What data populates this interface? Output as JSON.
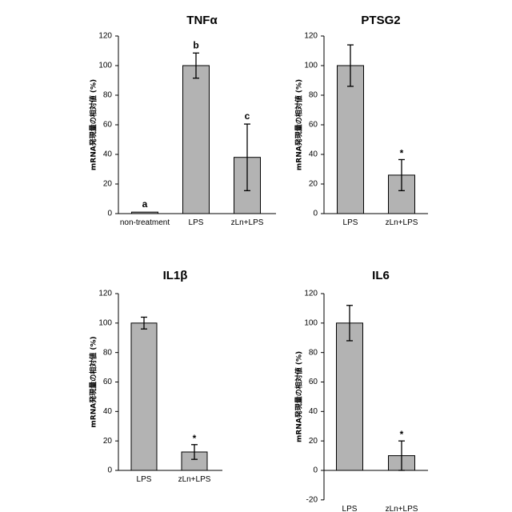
{
  "figure": {
    "bar_color": "#b3b3b3",
    "line_color": "#000000"
  },
  "chart_data": [
    {
      "type": "bar",
      "title": "TNFα",
      "ylabel": "mRNA発現量の相対値 (%)",
      "xlabel": "",
      "ylim": [
        0,
        120
      ],
      "yticks": [
        0,
        20,
        40,
        60,
        80,
        100,
        120
      ],
      "categories": [
        "non-treatment",
        "LPS",
        "zLn+LPS"
      ],
      "values": [
        1,
        100,
        38
      ],
      "errors": [
        0,
        8.5,
        22.5
      ],
      "annotations": [
        "a",
        "b",
        "c"
      ],
      "grid": false,
      "legend": "none"
    },
    {
      "type": "bar",
      "title": "PTSG2",
      "ylabel": "mRNA発現量の相対値 (%)",
      "xlabel": "",
      "ylim": [
        0,
        120
      ],
      "yticks": [
        0,
        20,
        40,
        60,
        80,
        100,
        120
      ],
      "categories": [
        "LPS",
        "zLn+LPS"
      ],
      "values": [
        100,
        26
      ],
      "errors": [
        14,
        10.5
      ],
      "annotations": [
        "",
        "*"
      ],
      "grid": false,
      "legend": "none"
    },
    {
      "type": "bar",
      "title": "IL1β",
      "ylabel": "mRNA発現量の相対値 (%)",
      "xlabel": "",
      "ylim": [
        0,
        120
      ],
      "yticks": [
        0,
        20,
        40,
        60,
        80,
        100,
        120
      ],
      "categories": [
        "LPS",
        "zLn+LPS"
      ],
      "values": [
        100,
        12.5
      ],
      "errors": [
        4,
        5
      ],
      "annotations": [
        "",
        "*"
      ],
      "grid": false,
      "legend": "none"
    },
    {
      "type": "bar",
      "title": "IL6",
      "ylabel": "mRNA発現量の相対値 (%)",
      "xlabel": "",
      "ylim": [
        -20,
        120
      ],
      "yticks": [
        -20,
        0,
        20,
        40,
        60,
        80,
        100,
        120
      ],
      "categories": [
        "LPS",
        "zLn+LPS"
      ],
      "values": [
        100,
        10
      ],
      "errors": [
        12,
        10
      ],
      "annotations": [
        "",
        "*"
      ],
      "grid": false,
      "legend": "none"
    }
  ]
}
